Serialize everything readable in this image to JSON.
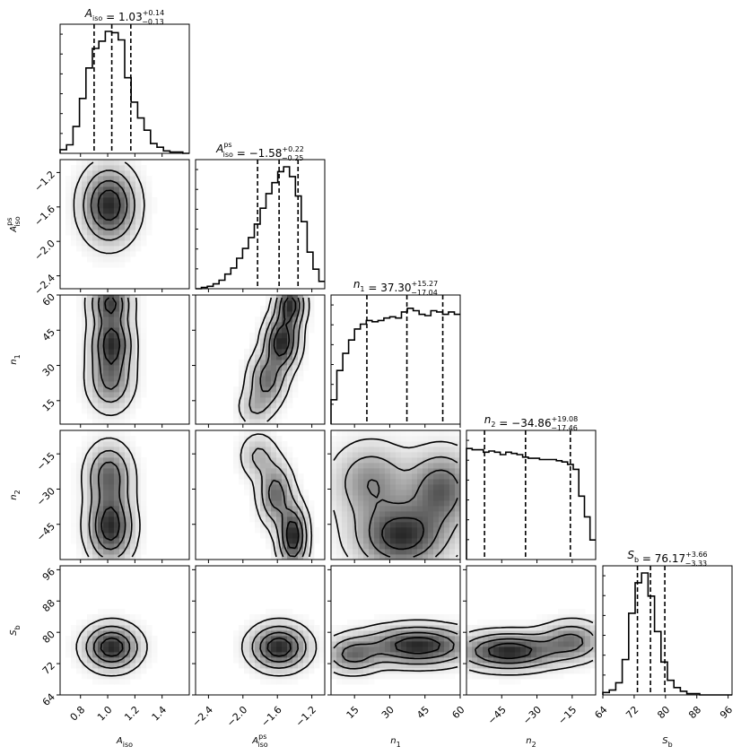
{
  "chart_data": {
    "type": "heatmap",
    "parameters": [
      {
        "symbol": "A",
        "sub": "iso",
        "sup": "",
        "ticks": [
          "0.8",
          "1.0",
          "1.2",
          "1.4"
        ],
        "tick_values": [
          0.8,
          1.0,
          1.2,
          1.4
        ],
        "range": [
          0.65,
          1.6
        ],
        "median": 1.03,
        "plus": 0.14,
        "minus": 0.13,
        "median_text": "1.03",
        "plus_text": "+0.14",
        "minus_text": "−0.13",
        "hist": [
          0.03,
          0.07,
          0.22,
          0.45,
          0.7,
          0.86,
          0.92,
          1.0,
          0.99,
          0.93,
          0.62,
          0.42,
          0.29,
          0.19,
          0.08,
          0.05,
          0.02,
          0.01,
          0.01,
          0.0
        ]
      },
      {
        "symbol": "A",
        "sub": "iso",
        "sup": "ps",
        "ticks": [
          "−2.4",
          "−2.0",
          "−1.6",
          "−1.2"
        ],
        "tick_values": [
          -2.4,
          -2.0,
          -1.6,
          -1.2
        ],
        "range": [
          -2.55,
          -1.05
        ],
        "median": -1.58,
        "plus": 0.22,
        "minus": 0.25,
        "median_text": "−1.58",
        "plus_text": "+0.22",
        "minus_text": "−0.25",
        "hist": [
          0.0,
          0.01,
          0.02,
          0.04,
          0.07,
          0.12,
          0.17,
          0.25,
          0.33,
          0.42,
          0.53,
          0.66,
          0.78,
          0.87,
          0.96,
          1.0,
          0.92,
          0.76,
          0.55,
          0.3,
          0.16,
          0.06
        ]
      },
      {
        "symbol": "n",
        "sub": "1",
        "sup": "",
        "ticks": [
          "15",
          "30",
          "45",
          "60"
        ],
        "tick_values": [
          15,
          30,
          45,
          60
        ],
        "range": [
          5,
          60
        ],
        "median": 37.3,
        "plus": 15.27,
        "minus": 17.04,
        "median_text": "37.30",
        "plus_text": "+15.27",
        "minus_text": "−17.04",
        "hist": [
          0.2,
          0.44,
          0.58,
          0.69,
          0.78,
          0.82,
          0.85,
          0.84,
          0.85,
          0.87,
          0.88,
          0.87,
          0.92,
          0.95,
          0.93,
          0.9,
          0.89,
          0.93,
          0.92,
          0.9,
          0.92,
          0.9
        ]
      },
      {
        "symbol": "n",
        "sub": "2",
        "sup": "",
        "ticks": [
          "−45",
          "−30",
          "−15"
        ],
        "tick_values": [
          -45,
          -30,
          -15
        ],
        "range": [
          -60,
          -5
        ],
        "median": -34.86,
        "plus": 19.08,
        "minus": 17.46,
        "median_text": "−34.86",
        "plus_text": "+19.08",
        "minus_text": "−17.46",
        "hist": [
          0.91,
          0.9,
          0.9,
          0.88,
          0.89,
          0.88,
          0.86,
          0.88,
          0.87,
          0.86,
          0.84,
          0.83,
          0.83,
          0.82,
          0.82,
          0.82,
          0.81,
          0.8,
          0.78,
          0.74,
          0.52,
          0.35,
          0.16
        ]
      },
      {
        "symbol": "S",
        "sub": "b",
        "sup": "",
        "ticks": [
          "64",
          "72",
          "80",
          "88",
          "96"
        ],
        "tick_values": [
          64,
          72,
          80,
          88,
          96
        ],
        "range": [
          64,
          97
        ],
        "median": 76.17,
        "plus": 3.66,
        "minus": 3.33,
        "median_text": "76.17",
        "plus_text": "+3.66",
        "minus_text": "−3.33",
        "hist": [
          0.02,
          0.04,
          0.1,
          0.29,
          0.67,
          0.92,
          1.0,
          0.81,
          0.52,
          0.27,
          0.12,
          0.06,
          0.03,
          0.01,
          0.01,
          0.0,
          0.0,
          0.0,
          0.0,
          0.0
        ]
      }
    ],
    "panels": [
      {
        "row": 1,
        "col": 0,
        "peaks": [
          {
            "x": 1.01,
            "y": -1.58,
            "sx": 0.12,
            "sy": 0.26,
            "w": 1
          }
        ]
      },
      {
        "row": 2,
        "col": 0,
        "peaks": [
          {
            "x": 1.02,
            "y": 57,
            "sx": 0.09,
            "sy": 6,
            "w": 0.75
          },
          {
            "x": 1.03,
            "y": 40,
            "sx": 0.09,
            "sy": 7,
            "w": 0.8
          },
          {
            "x": 1.02,
            "y": 24,
            "sx": 0.1,
            "sy": 8,
            "w": 0.55
          }
        ]
      },
      {
        "row": 2,
        "col": 1,
        "peaks": [
          {
            "x": -1.45,
            "y": 56,
            "sx": 0.1,
            "sy": 6,
            "w": 0.8
          },
          {
            "x": -1.55,
            "y": 40,
            "sx": 0.12,
            "sy": 7,
            "w": 0.85
          },
          {
            "x": -1.72,
            "y": 24,
            "sx": 0.13,
            "sy": 7,
            "w": 0.55
          },
          {
            "x": -1.86,
            "y": 12,
            "sx": 0.12,
            "sy": 5,
            "w": 0.25
          }
        ]
      },
      {
        "row": 3,
        "col": 0,
        "peaks": [
          {
            "x": 1.02,
            "y": -46,
            "sx": 0.1,
            "sy": 9,
            "w": 0.85
          },
          {
            "x": 1.01,
            "y": -24,
            "sx": 0.1,
            "sy": 8,
            "w": 0.6
          }
        ]
      },
      {
        "row": 3,
        "col": 1,
        "peaks": [
          {
            "x": -1.42,
            "y": -50,
            "sx": 0.1,
            "sy": 8,
            "w": 0.9
          },
          {
            "x": -1.62,
            "y": -32,
            "sx": 0.12,
            "sy": 8,
            "w": 0.6
          },
          {
            "x": -1.82,
            "y": -16,
            "sx": 0.13,
            "sy": 6,
            "w": 0.3
          }
        ]
      },
      {
        "row": 3,
        "col": 2,
        "peaks": [
          {
            "x": 35,
            "y": -50,
            "sx": 12,
            "sy": 9,
            "w": 0.9
          },
          {
            "x": 52,
            "y": -30,
            "sx": 9,
            "sy": 10,
            "w": 0.7
          },
          {
            "x": 22,
            "y": -27,
            "sx": 10,
            "sy": 10,
            "w": 0.5
          }
        ]
      },
      {
        "row": 4,
        "col": 0,
        "peaks": [
          {
            "x": 1.03,
            "y": 76.2,
            "sx": 0.12,
            "sy": 3.4,
            "w": 1
          }
        ]
      },
      {
        "row": 4,
        "col": 1,
        "peaks": [
          {
            "x": -1.58,
            "y": 76.2,
            "sx": 0.2,
            "sy": 3.4,
            "w": 1
          }
        ]
      },
      {
        "row": 4,
        "col": 2,
        "peaks": [
          {
            "x": 42,
            "y": 76.6,
            "sx": 14,
            "sy": 3.0,
            "w": 1
          },
          {
            "x": 14,
            "y": 74.2,
            "sx": 7,
            "sy": 2.8,
            "w": 0.6
          }
        ]
      },
      {
        "row": 4,
        "col": 3,
        "peaks": [
          {
            "x": -42,
            "y": 75.2,
            "sx": 13,
            "sy": 2.8,
            "w": 1
          },
          {
            "x": -15,
            "y": 77.8,
            "sx": 8,
            "sy": 3.0,
            "w": 0.6
          }
        ]
      }
    ]
  }
}
